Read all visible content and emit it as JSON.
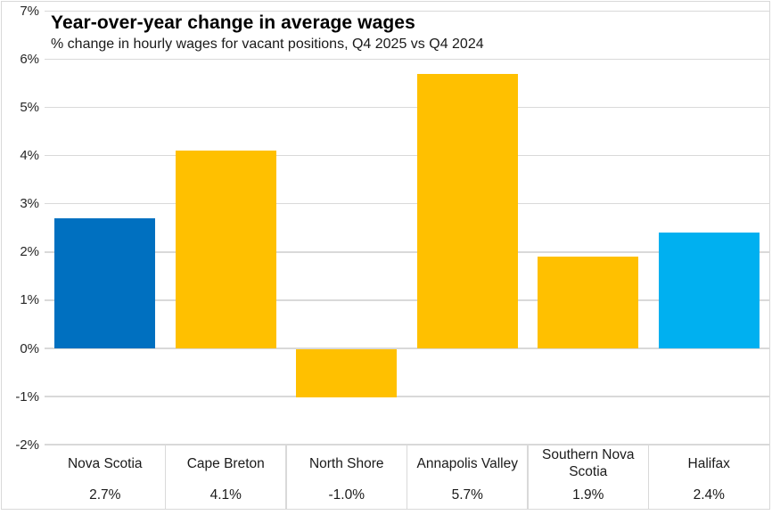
{
  "chart_data": {
    "type": "bar",
    "title": "Year-over-year change in average wages",
    "subtitle": "% change in hourly wages for vacant positions, Q4 2025 vs Q4 2024",
    "categories": [
      "Nova Scotia",
      "Cape Breton",
      "North Shore",
      "Annapolis Valley",
      "Southern Nova Scotia",
      "Halifax"
    ],
    "values": [
      2.7,
      4.1,
      -1.0,
      5.7,
      1.9,
      2.4
    ],
    "value_labels": [
      "2.7%",
      "4.1%",
      "-1.0%",
      "5.7%",
      "1.9%",
      "2.4%"
    ],
    "bar_colors": [
      "#0070C0",
      "#FFC000",
      "#FFC000",
      "#FFC000",
      "#FFC000",
      "#00B0F0"
    ],
    "xlabel": "",
    "ylabel": "",
    "ylim": [
      -2,
      7
    ],
    "y_tick_values": [
      7,
      6,
      5,
      4,
      3,
      2,
      1,
      0,
      -1,
      -2
    ],
    "y_tick_labels": [
      "7%",
      "6%",
      "5%",
      "4%",
      "3%",
      "2%",
      "1%",
      "0%",
      "-1%",
      "-2%"
    ],
    "grid": true,
    "gridline_color": "#D9D9D9",
    "border_color": "#D9D9D9",
    "legend": "none",
    "data_table_shown": true
  }
}
